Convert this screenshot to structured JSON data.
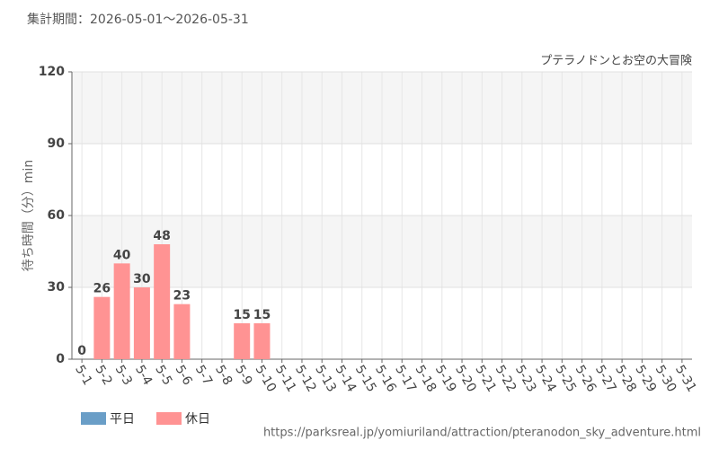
{
  "chart_data": {
    "type": "bar",
    "title": "集計期間：2026-05-01～2026-05-31",
    "subtitle": "プテラノドンとお空の大冒険",
    "y_label": "待ち時間（分）min",
    "source": "https://parksreal.jp/yomiuriland/attraction/pteranodon_sky_adventure.html",
    "categories": [
      "5-1",
      "5-2",
      "5-3",
      "5-4",
      "5-5",
      "5-6",
      "5-7",
      "5-8",
      "5-9",
      "5-10",
      "5-11",
      "5-12",
      "5-13",
      "5-14",
      "5-15",
      "5-16",
      "5-17",
      "5-18",
      "5-19",
      "5-20",
      "5-21",
      "5-22",
      "5-23",
      "5-24",
      "5-25",
      "5-26",
      "5-27",
      "5-28",
      "5-29",
      "5-30",
      "5-31"
    ],
    "category_label_colors": [
      "#333",
      "#f08080",
      "#f08080",
      "#f08080",
      "#f08080",
      "#f08080",
      "#333",
      "#333",
      "#f08080",
      "#f08080",
      "#333",
      "#333",
      "#333",
      "#333",
      "#333",
      "#f08080",
      "#f08080",
      "#333",
      "#333",
      "#333",
      "#333",
      "#333",
      "#f08080",
      "#f08080",
      "#333",
      "#333",
      "#333",
      "#333",
      "#333",
      "#f08080",
      "#f08080"
    ],
    "series": [
      {
        "name": "平日",
        "color": "#6a9ec7",
        "values": [
          0,
          null,
          null,
          null,
          null,
          null,
          null,
          null,
          null,
          null,
          null,
          null,
          null,
          null,
          null,
          null,
          null,
          null,
          null,
          null,
          null,
          null,
          null,
          null,
          null,
          null,
          null,
          null,
          null,
          null,
          null
        ]
      },
      {
        "name": "休日",
        "color": "#ff9393",
        "values": [
          null,
          26,
          40,
          30,
          48,
          23,
          null,
          null,
          15,
          15,
          null,
          null,
          null,
          null,
          null,
          null,
          null,
          null,
          null,
          null,
          null,
          null,
          null,
          null,
          null,
          null,
          null,
          null,
          null,
          null,
          null
        ]
      }
    ],
    "ylim": [
      0,
      120
    ],
    "yticks": [
      0,
      30,
      60,
      90,
      120
    ],
    "grid": true,
    "legend": "bottom-left"
  }
}
